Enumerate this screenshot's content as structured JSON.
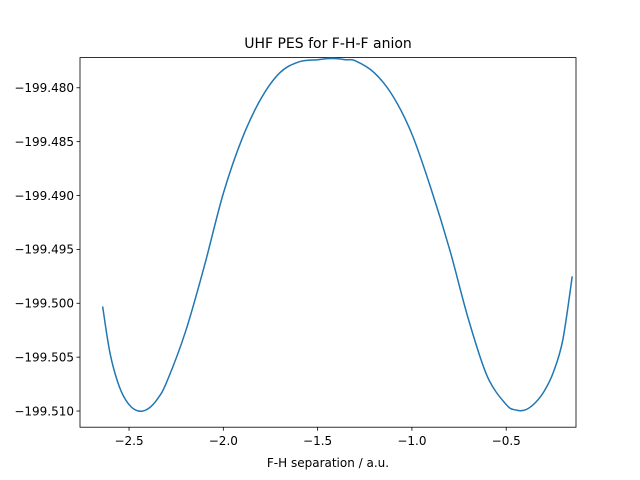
{
  "chart_data": {
    "type": "line",
    "title": "UHF PES for F-H-F anion",
    "xlabel": "F-H separation / a.u.",
    "ylabel": "",
    "xlim": [
      -2.76,
      -0.13
    ],
    "ylim": [
      -199.5115,
      -199.4772
    ],
    "xticks": [
      -2.5,
      -2.0,
      -1.5,
      -1.0,
      -0.5
    ],
    "xtick_labels": [
      "−2.5",
      "−2.0",
      "−1.5",
      "−1.0",
      "−0.5"
    ],
    "yticks": [
      -199.48,
      -199.485,
      -199.49,
      -199.495,
      -199.5,
      -199.505,
      -199.51
    ],
    "ytick_labels": [
      "−199.480",
      "−199.485",
      "−199.490",
      "−199.495",
      "−199.500",
      "−199.505",
      "−199.510"
    ],
    "grid": false,
    "series": [
      {
        "color": "#1f77b4",
        "x": [
          -2.64,
          -2.6,
          -2.55,
          -2.5,
          -2.45,
          -2.4,
          -2.35,
          -2.3,
          -2.2,
          -2.1,
          -2.0,
          -1.9,
          -1.8,
          -1.7,
          -1.6,
          -1.5,
          -1.45,
          -1.4,
          -1.35,
          -1.3,
          -1.2,
          -1.1,
          -1.0,
          -0.9,
          -0.8,
          -0.7,
          -0.6,
          -0.5,
          -0.45,
          -0.4,
          -0.35,
          -0.3,
          -0.25,
          -0.2,
          -0.15
        ],
        "y": [
          -199.5003,
          -199.5047,
          -199.5078,
          -199.5094,
          -199.51,
          -199.5098,
          -199.5089,
          -199.5073,
          -199.5026,
          -199.4965,
          -199.4898,
          -199.4847,
          -199.481,
          -199.4786,
          -199.4776,
          -199.4774,
          -199.4773,
          -199.4773,
          -199.4774,
          -199.4775,
          -199.4786,
          -199.4808,
          -199.4843,
          -199.4893,
          -199.495,
          -199.5015,
          -199.5068,
          -199.5094,
          -199.5099,
          -199.5099,
          -199.5093,
          -199.5082,
          -199.5064,
          -199.5034,
          -199.4975
        ]
      }
    ]
  }
}
